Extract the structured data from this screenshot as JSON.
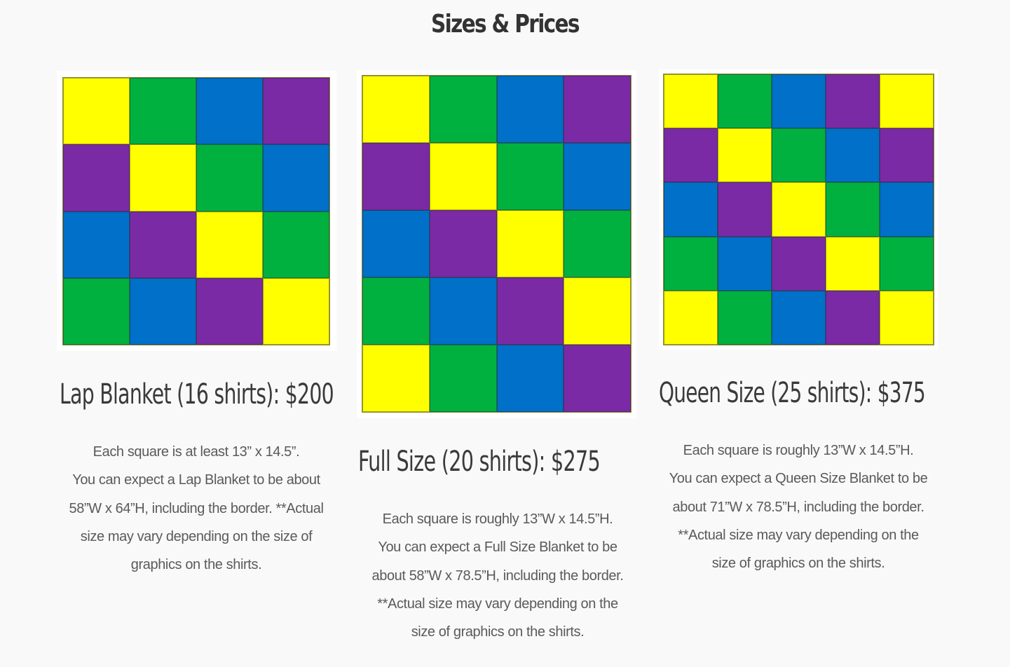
{
  "page": {
    "title": "Sizes & Prices"
  },
  "colors": {
    "Y": "#ffff00",
    "G": "#00b140",
    "B": "#0070c8",
    "P": "#7b2aa6"
  },
  "products": [
    {
      "heading": "Lap Blanket (16 shirts): $200",
      "grid_columns": 4,
      "pattern": [
        "Y",
        "G",
        "B",
        "P",
        "P",
        "Y",
        "G",
        "B",
        "B",
        "P",
        "Y",
        "G",
        "G",
        "B",
        "P",
        "Y"
      ],
      "description_lines": [
        "Each square is at least 13” x 14.5”.",
        "You can expect a Lap Blanket to be about",
        "58”W x 64”H, including the border. **Actual",
        "size may vary depending on the size of",
        "graphics on the shirts."
      ]
    },
    {
      "heading": "Full Size (20 shirts): $275",
      "grid_columns": 4,
      "pattern": [
        "Y",
        "G",
        "B",
        "P",
        "P",
        "Y",
        "G",
        "B",
        "B",
        "P",
        "Y",
        "G",
        "G",
        "B",
        "P",
        "Y",
        "Y",
        "G",
        "B",
        "P"
      ],
      "description_lines": [
        "Each square is roughly 13”W x 14.5”H.",
        "You can expect a Full Size Blanket to be",
        "about 58”W x 78.5”H, including the border.",
        "**Actual size may vary depending on the",
        "size of graphics on the shirts."
      ]
    },
    {
      "heading": "Queen Size (25 shirts): $375",
      "grid_columns": 5,
      "pattern": [
        "Y",
        "G",
        "B",
        "P",
        "Y",
        "P",
        "Y",
        "G",
        "B",
        "P",
        "B",
        "P",
        "Y",
        "G",
        "B",
        "G",
        "B",
        "P",
        "Y",
        "G",
        "Y",
        "G",
        "B",
        "P",
        "Y"
      ],
      "description_lines": [
        "Each square is roughly 13”W x 14.5”H.",
        "You can expect a Queen Size Blanket to be",
        "about 71”W x 78.5”H, including the border.",
        "**Actual size may vary depending on the",
        "size of graphics on the shirts."
      ]
    }
  ]
}
